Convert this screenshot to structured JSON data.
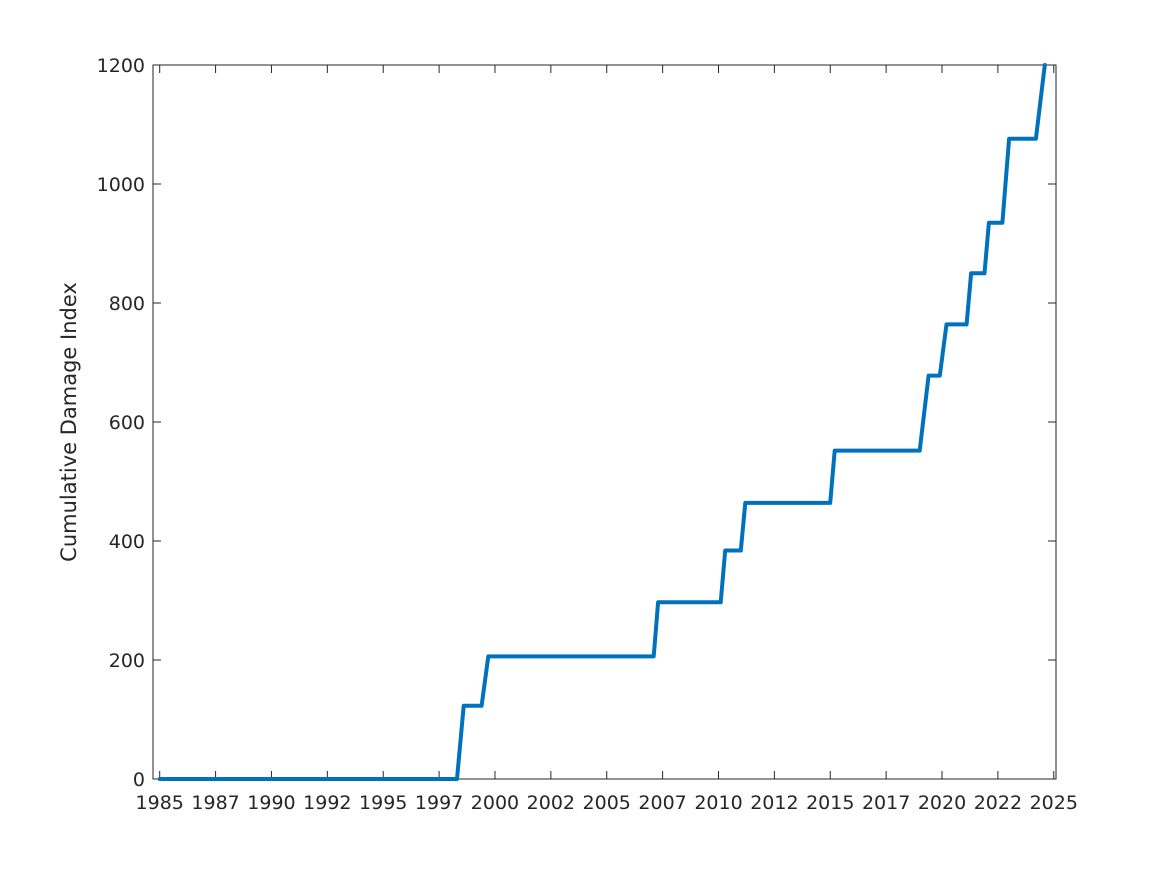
{
  "chart_data": {
    "type": "line",
    "title": "",
    "xlabel": "",
    "ylabel": "Cumulative Damage Index",
    "xlim": [
      1985,
      2025.4
    ],
    "ylim": [
      0,
      1200
    ],
    "grid": false,
    "legend": "none",
    "line_color": "#0072BD",
    "x_ticks": [
      {
        "value": 1985.3,
        "label": "1985"
      },
      {
        "value": 1987.8,
        "label": "1987"
      },
      {
        "value": 1990.3,
        "label": "1990"
      },
      {
        "value": 1992.8,
        "label": "1992"
      },
      {
        "value": 1995.3,
        "label": "1995"
      },
      {
        "value": 1997.8,
        "label": "1997"
      },
      {
        "value": 2000.3,
        "label": "2000"
      },
      {
        "value": 2002.8,
        "label": "2002"
      },
      {
        "value": 2005.3,
        "label": "2005"
      },
      {
        "value": 2007.8,
        "label": "2007"
      },
      {
        "value": 2010.3,
        "label": "2010"
      },
      {
        "value": 2012.8,
        "label": "2012"
      },
      {
        "value": 2015.3,
        "label": "2015"
      },
      {
        "value": 2017.8,
        "label": "2017"
      },
      {
        "value": 2020.3,
        "label": "2020"
      },
      {
        "value": 2022.8,
        "label": "2022"
      },
      {
        "value": 2025.3,
        "label": "2025"
      }
    ],
    "y_ticks": [
      {
        "value": 0,
        "label": "0"
      },
      {
        "value": 200,
        "label": "200"
      },
      {
        "value": 400,
        "label": "400"
      },
      {
        "value": 600,
        "label": "600"
      },
      {
        "value": 800,
        "label": "800"
      },
      {
        "value": 1000,
        "label": "1000"
      },
      {
        "value": 1200,
        "label": "1200"
      }
    ],
    "series": [
      {
        "x": [
          1985.3,
          1998.6,
          1998.9,
          1999.7,
          2000.0,
          2007.4,
          2007.6,
          2010.4,
          2010.6,
          2011.3,
          2011.5,
          2015.3,
          2015.5,
          2019.3,
          2019.7,
          2020.2,
          2020.5,
          2021.4,
          2021.6,
          2022.2,
          2022.4,
          2023.0,
          2023.3,
          2023.8,
          2024.1,
          2024.5,
          2024.9
        ],
        "y": [
          0,
          0,
          123,
          123,
          206,
          206,
          297,
          297,
          384,
          384,
          464,
          464,
          552,
          552,
          678,
          678,
          764,
          764,
          850,
          850,
          935,
          935,
          1076,
          1076,
          1076,
          1076,
          1200
        ]
      }
    ]
  }
}
